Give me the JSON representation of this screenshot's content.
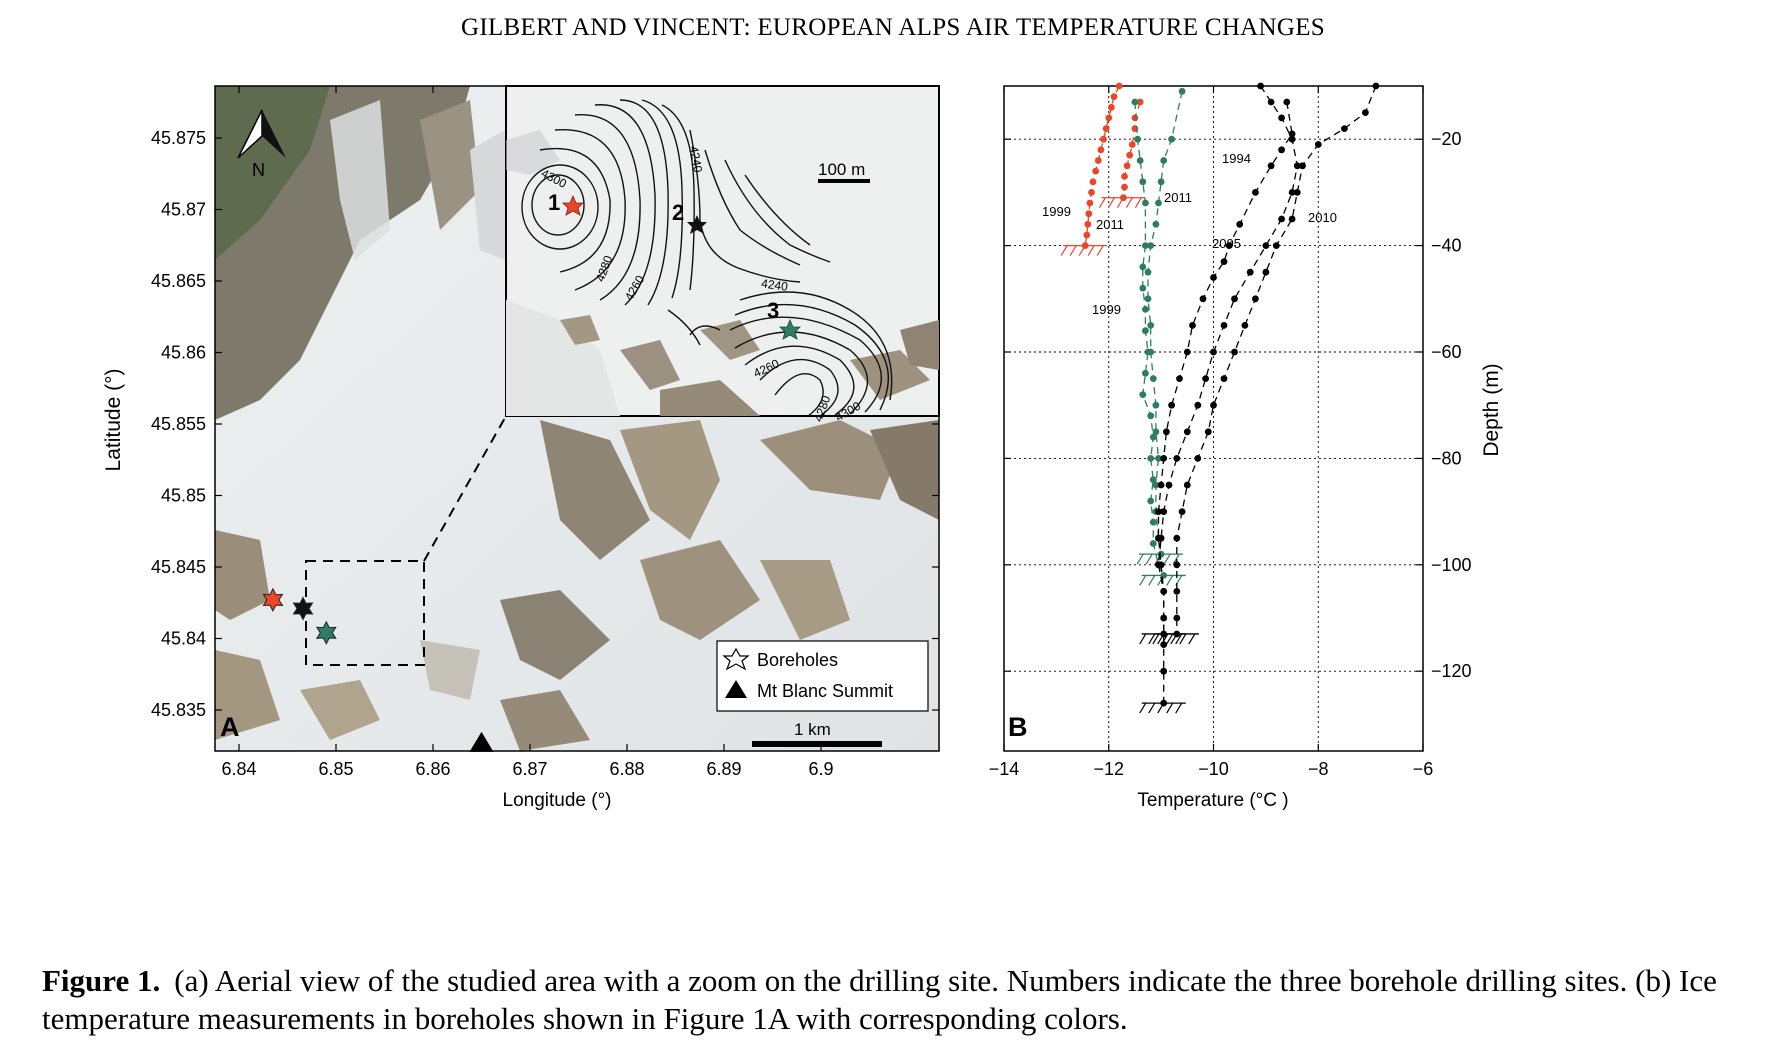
{
  "header": {
    "running_title": "GILBERT AND VINCENT: EUROPEAN ALPS AIR TEMPERATURE CHANGES"
  },
  "panel_a": {
    "label": "A",
    "xlabel": "Longitude (°)",
    "ylabel": "Latitude (°)",
    "x_ticks": [
      "6.84",
      "6.85",
      "6.86",
      "6.87",
      "6.88",
      "6.89",
      "6.9"
    ],
    "y_ticks": [
      "45.875",
      "45.87",
      "45.865",
      "45.86",
      "45.855",
      "45.85",
      "45.845",
      "45.84",
      "45.835"
    ],
    "north_label": "N",
    "legend": {
      "boreholes": "Boreholes",
      "summit": "Mt Blanc Summit"
    },
    "scale_bar": "1 km",
    "markers": [
      {
        "name": "borehole 1",
        "lon": 6.8435,
        "lat": 45.8427,
        "color": "#e8472a"
      },
      {
        "name": "borehole 2",
        "lon": 6.8466,
        "lat": 45.8421,
        "color": "#111111"
      },
      {
        "name": "borehole 3",
        "lon": 6.849,
        "lat": 45.8404,
        "color": "#2e7d62"
      },
      {
        "name": "Mt Blanc Summit",
        "lon": 6.865,
        "lat": 45.8327,
        "color": "#000000"
      }
    ],
    "inset": {
      "scale_label": "100 m",
      "site_labels": [
        {
          "text": "1",
          "color": "#e8472a"
        },
        {
          "text": "2",
          "color": "#111111"
        },
        {
          "text": "3",
          "color": "#2e7d62"
        }
      ],
      "contour_labels": [
        "4300",
        "4240",
        "4280",
        "4260",
        "4240",
        "4260",
        "4280",
        "4300"
      ]
    }
  },
  "panel_b": {
    "label": "B",
    "chart_data": {
      "type": "line",
      "xlabel": "Temperature (°C )",
      "ylabel": "Depth (m)",
      "xlim": [
        -14,
        -6
      ],
      "ylim": [
        -135,
        -10
      ],
      "x_ticks": [
        "−14",
        "−12",
        "−10",
        "−8",
        "−6"
      ],
      "y_ticks": [
        "−20",
        "−40",
        "−60",
        "−80",
        "−100",
        "−120"
      ],
      "grid": true,
      "series": [
        {
          "name": "1999",
          "color": "#e8472a",
          "points": [
            [
              -11.8,
              -10
            ],
            [
              -11.9,
              -12
            ],
            [
              -11.95,
              -14
            ],
            [
              -12.0,
              -16
            ],
            [
              -12.05,
              -18
            ],
            [
              -12.1,
              -20
            ],
            [
              -12.15,
              -22
            ],
            [
              -12.2,
              -24
            ],
            [
              -12.25,
              -26
            ],
            [
              -12.3,
              -28
            ],
            [
              -12.33,
              -30
            ],
            [
              -12.36,
              -32
            ],
            [
              -12.38,
              -34
            ],
            [
              -12.4,
              -36
            ],
            [
              -12.42,
              -38
            ],
            [
              -12.45,
              -40
            ]
          ]
        },
        {
          "name": "2011",
          "color": "#e8472a",
          "points": [
            [
              -11.4,
              -13
            ],
            [
              -11.5,
              -16
            ],
            [
              -11.5,
              -18
            ],
            [
              -11.55,
              -21
            ],
            [
              -11.6,
              -23
            ],
            [
              -11.65,
              -25
            ],
            [
              -11.7,
              -27
            ],
            [
              -11.7,
              -29
            ],
            [
              -11.72,
              -31
            ]
          ]
        },
        {
          "name": "1999",
          "color": "#2e7d62",
          "points": [
            [
              -11.5,
              -13
            ],
            [
              -11.45,
              -20
            ],
            [
              -11.4,
              -24
            ],
            [
              -11.35,
              -28
            ],
            [
              -11.3,
              -32
            ],
            [
              -11.3,
              -40
            ],
            [
              -11.35,
              -44
            ],
            [
              -11.35,
              -48
            ],
            [
              -11.3,
              -52
            ],
            [
              -11.3,
              -56
            ],
            [
              -11.25,
              -60
            ],
            [
              -11.3,
              -64
            ],
            [
              -11.35,
              -68
            ],
            [
              -11.2,
              -72
            ],
            [
              -11.15,
              -76
            ],
            [
              -11.2,
              -80
            ],
            [
              -11.15,
              -84
            ],
            [
              -11.2,
              -88
            ],
            [
              -11.15,
              -92
            ],
            [
              -11.15,
              -96
            ],
            [
              -11.05,
              -100
            ],
            [
              -10.95,
              -102
            ]
          ]
        },
        {
          "name": "2011",
          "color": "#2e7d62",
          "points": [
            [
              -10.6,
              -11
            ],
            [
              -10.8,
              -20
            ],
            [
              -10.95,
              -24
            ],
            [
              -11.0,
              -28
            ],
            [
              -11.05,
              -32
            ],
            [
              -11.1,
              -36
            ],
            [
              -11.2,
              -40
            ],
            [
              -11.25,
              -45
            ],
            [
              -11.25,
              -50
            ],
            [
              -11.2,
              -55
            ],
            [
              -11.2,
              -60
            ],
            [
              -11.15,
              -65
            ],
            [
              -11.1,
              -70
            ],
            [
              -11.1,
              -75
            ],
            [
              -11.05,
              -80
            ],
            [
              -11.1,
              -85
            ],
            [
              -11.1,
              -90
            ],
            [
              -11.05,
              -95
            ],
            [
              -11.0,
              -98
            ]
          ]
        },
        {
          "name": "1994",
          "color": "#000000",
          "points": [
            [
              -8.6,
              -13
            ],
            [
              -8.5,
              -19
            ],
            [
              -8.7,
              -22
            ],
            [
              -8.9,
              -25
            ],
            [
              -9.2,
              -30
            ],
            [
              -9.5,
              -36
            ],
            [
              -9.7,
              -40
            ],
            [
              -9.8,
              -43
            ],
            [
              -10.0,
              -46
            ],
            [
              -10.2,
              -50
            ],
            [
              -10.4,
              -55
            ],
            [
              -10.5,
              -60
            ],
            [
              -10.65,
              -65
            ],
            [
              -10.8,
              -70
            ],
            [
              -10.9,
              -75
            ],
            [
              -10.95,
              -80
            ],
            [
              -11.0,
              -85
            ],
            [
              -11.05,
              -90
            ],
            [
              -11.05,
              -95
            ],
            [
              -11.0,
              -100
            ],
            [
              -10.95,
              -105
            ],
            [
              -10.95,
              -110
            ],
            [
              -10.95,
              -113
            ]
          ]
        },
        {
          "name": "2005",
          "color": "#000000",
          "points": [
            [
              -9.1,
              -10
            ],
            [
              -8.9,
              -13
            ],
            [
              -8.7,
              -16
            ],
            [
              -8.5,
              -20
            ],
            [
              -8.4,
              -25
            ],
            [
              -8.5,
              -30
            ],
            [
              -8.7,
              -35
            ],
            [
              -9.0,
              -40
            ],
            [
              -9.3,
              -45
            ],
            [
              -9.6,
              -50
            ],
            [
              -9.8,
              -55
            ],
            [
              -10.0,
              -60
            ],
            [
              -10.15,
              -65
            ],
            [
              -10.3,
              -70
            ],
            [
              -10.5,
              -75
            ],
            [
              -10.7,
              -80
            ],
            [
              -10.85,
              -85
            ],
            [
              -10.95,
              -90
            ],
            [
              -11.0,
              -95
            ],
            [
              -11.05,
              -100
            ],
            [
              -10.95,
              -105
            ],
            [
              -10.95,
              -110
            ],
            [
              -10.95,
              -115
            ],
            [
              -10.95,
              -120
            ],
            [
              -10.95,
              -126
            ]
          ]
        },
        {
          "name": "2010",
          "color": "#000000",
          "points": [
            [
              -6.9,
              -10
            ],
            [
              -7.1,
              -15
            ],
            [
              -7.5,
              -18
            ],
            [
              -8.0,
              -21
            ],
            [
              -8.3,
              -25
            ],
            [
              -8.4,
              -30
            ],
            [
              -8.5,
              -35
            ],
            [
              -8.8,
              -40
            ],
            [
              -9.0,
              -45
            ],
            [
              -9.2,
              -50
            ],
            [
              -9.4,
              -55
            ],
            [
              -9.6,
              -60
            ],
            [
              -9.8,
              -65
            ],
            [
              -10.0,
              -70
            ],
            [
              -10.1,
              -75
            ],
            [
              -10.3,
              -80
            ],
            [
              -10.5,
              -85
            ],
            [
              -10.6,
              -90
            ],
            [
              -10.7,
              -95
            ],
            [
              -10.7,
              -100
            ],
            [
              -10.7,
              -105
            ],
            [
              -10.7,
              -110
            ],
            [
              -10.7,
              -113
            ]
          ]
        }
      ]
    }
  },
  "caption": {
    "label": "Figure 1.",
    "text": "(a) Aerial view of the studied area with a zoom on the drilling site. Numbers indicate the three borehole drilling sites. (b) Ice temperature measurements in boreholes shown in Figure 1A with corresponding colors."
  }
}
